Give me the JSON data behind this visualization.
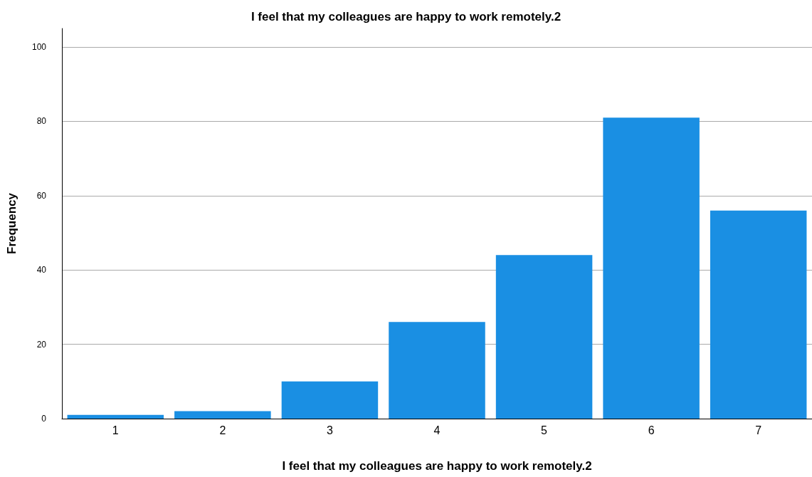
{
  "chart_data": {
    "type": "bar",
    "title": "I feel that my colleagues are happy to work remotely.2",
    "xlabel": "I feel that my colleagues are happy to work remotely.2",
    "ylabel": "Frequency",
    "categories": [
      "1",
      "2",
      "3",
      "4",
      "5",
      "6",
      "7"
    ],
    "values": [
      1,
      2,
      10,
      26,
      44,
      81,
      56
    ],
    "color": "#1a8fe3",
    "ylim": [
      0,
      105
    ],
    "yticks": [
      0,
      20,
      40,
      60,
      80,
      100
    ],
    "grid": "y"
  }
}
